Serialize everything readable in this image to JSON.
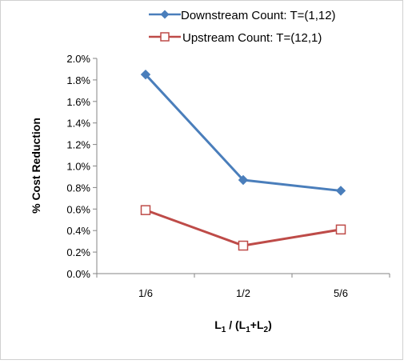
{
  "chart_data": {
    "type": "line",
    "categories": [
      "1/6",
      "1/2",
      "5/6"
    ],
    "series": [
      {
        "name": "Downstream Count: T=(1,12)",
        "values": [
          0.0185,
          0.0087,
          0.0077
        ],
        "color": "#4a7ebb",
        "marker": "diamond-filled"
      },
      {
        "name": "Upstream Count: T=(12,1)",
        "values": [
          0.0059,
          0.0026,
          0.0041
        ],
        "color": "#be4b48",
        "marker": "square-open"
      }
    ],
    "ylabel": "% Cost Reduction",
    "xlabel": {
      "main": "L",
      "sub1": "1",
      "mid": " / (L",
      "sub2": "1",
      "plus": "+L",
      "sub3": "2",
      "end": ")"
    },
    "ylim": [
      0,
      0.02
    ],
    "ytick_labels": [
      "0.0%",
      "0.2%",
      "0.4%",
      "0.6%",
      "0.8%",
      "1.0%",
      "1.2%",
      "1.4%",
      "1.6%",
      "1.8%",
      "2.0%"
    ],
    "grid": false,
    "legend_position": "top"
  }
}
